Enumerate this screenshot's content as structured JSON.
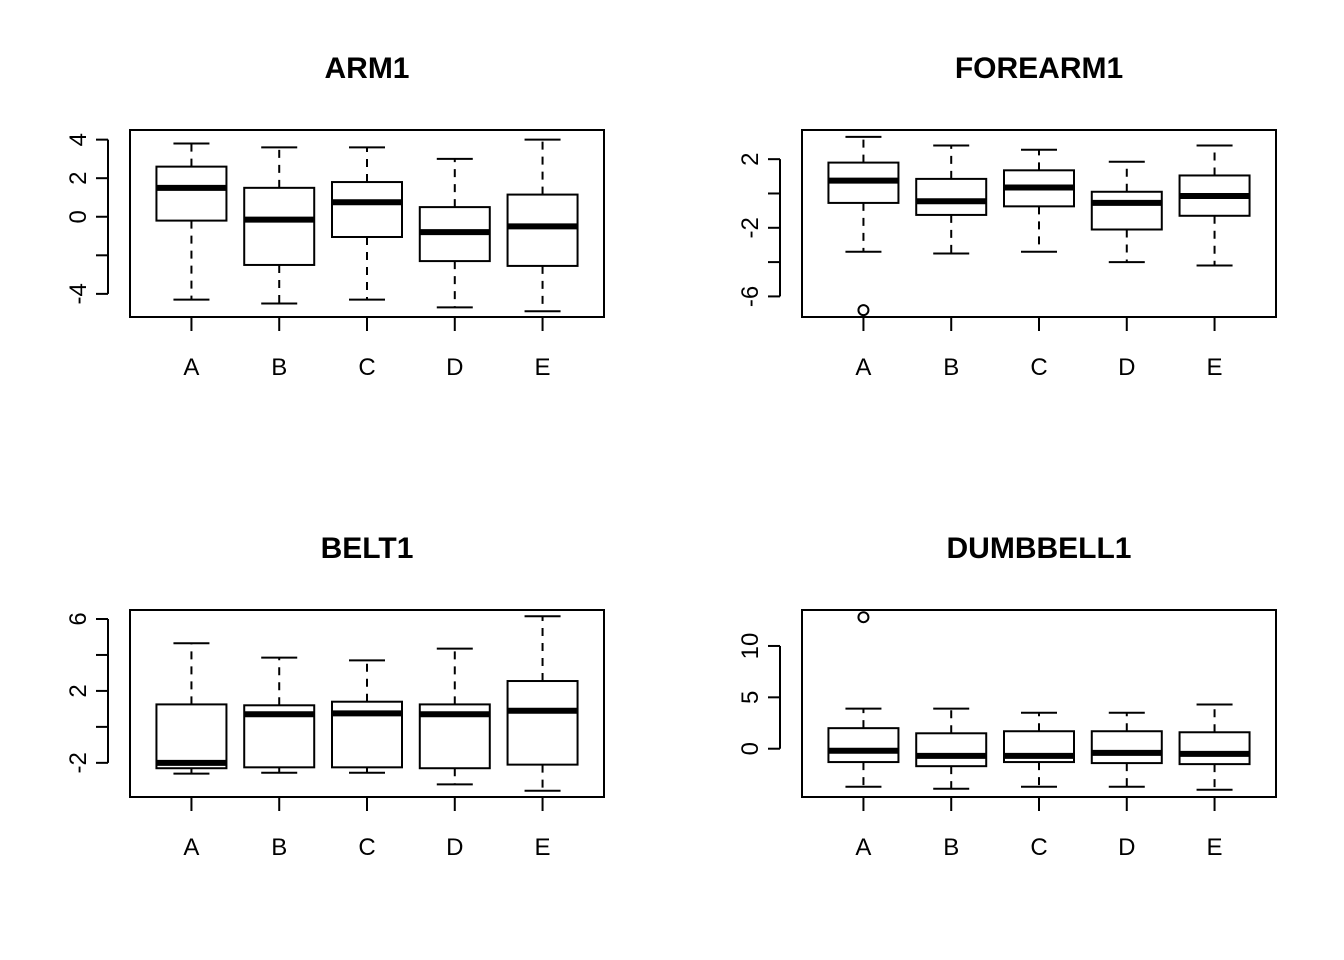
{
  "chart_data": [
    {
      "type": "boxplot",
      "title": "ARM1",
      "categories": [
        "A",
        "B",
        "C",
        "D",
        "E"
      ],
      "ylim": [
        -5.2,
        4.5
      ],
      "yticks": [
        -4,
        -2,
        0,
        2,
        4
      ],
      "ytick_labels": [
        "-4",
        "",
        "0",
        "2",
        "4"
      ],
      "boxes": [
        {
          "category": "A",
          "min": -4.3,
          "q1": -0.2,
          "median": 1.5,
          "q3": 2.6,
          "max": 3.8,
          "outliers": []
        },
        {
          "category": "B",
          "min": -4.5,
          "q1": -2.5,
          "median": -0.15,
          "q3": 1.5,
          "max": 3.6,
          "outliers": []
        },
        {
          "category": "C",
          "min": -4.3,
          "q1": -1.05,
          "median": 0.75,
          "q3": 1.8,
          "max": 3.6,
          "outliers": []
        },
        {
          "category": "D",
          "min": -4.7,
          "q1": -2.3,
          "median": -0.8,
          "q3": 0.5,
          "max": 3.0,
          "outliers": []
        },
        {
          "category": "E",
          "min": -4.9,
          "q1": -2.55,
          "median": -0.5,
          "q3": 1.15,
          "max": 4.0,
          "outliers": []
        }
      ]
    },
    {
      "type": "boxplot",
      "title": "FOREARM1",
      "categories": [
        "A",
        "B",
        "C",
        "D",
        "E"
      ],
      "ylim": [
        -7.2,
        3.7
      ],
      "yticks": [
        -6,
        -4,
        -2,
        0,
        2
      ],
      "ytick_labels": [
        "-6",
        "",
        "-2",
        "",
        "2"
      ],
      "boxes": [
        {
          "category": "A",
          "min": -3.4,
          "q1": -0.55,
          "median": 0.75,
          "q3": 1.8,
          "max": 3.3,
          "outliers": [
            -6.8
          ]
        },
        {
          "category": "B",
          "min": -3.5,
          "q1": -1.25,
          "median": -0.45,
          "q3": 0.85,
          "max": 2.8,
          "outliers": []
        },
        {
          "category": "C",
          "min": -3.4,
          "q1": -0.75,
          "median": 0.35,
          "q3": 1.35,
          "max": 2.55,
          "outliers": []
        },
        {
          "category": "D",
          "min": -4.0,
          "q1": -2.1,
          "median": -0.55,
          "q3": 0.1,
          "max": 1.85,
          "outliers": []
        },
        {
          "category": "E",
          "min": -4.2,
          "q1": -1.3,
          "median": -0.15,
          "q3": 1.05,
          "max": 2.8,
          "outliers": []
        }
      ]
    },
    {
      "type": "boxplot",
      "title": "BELT1",
      "categories": [
        "A",
        "B",
        "C",
        "D",
        "E"
      ],
      "ylim": [
        -3.9,
        6.5
      ],
      "yticks": [
        -2,
        0,
        2,
        4,
        6
      ],
      "ytick_labels": [
        "-2",
        "",
        "2",
        "",
        "6"
      ],
      "boxes": [
        {
          "category": "A",
          "min": -2.6,
          "q1": -2.3,
          "median": -2.0,
          "q3": 1.25,
          "max": 4.65,
          "outliers": []
        },
        {
          "category": "B",
          "min": -2.55,
          "q1": -2.25,
          "median": 0.7,
          "q3": 1.2,
          "max": 3.85,
          "outliers": []
        },
        {
          "category": "C",
          "min": -2.55,
          "q1": -2.25,
          "median": 0.75,
          "q3": 1.4,
          "max": 3.7,
          "outliers": []
        },
        {
          "category": "D",
          "min": -3.2,
          "q1": -2.3,
          "median": 0.7,
          "q3": 1.25,
          "max": 4.35,
          "outliers": []
        },
        {
          "category": "E",
          "min": -3.55,
          "q1": -2.1,
          "median": 0.9,
          "q3": 2.55,
          "max": 6.15,
          "outliers": []
        }
      ]
    },
    {
      "type": "boxplot",
      "title": "DUMBBELL1",
      "categories": [
        "A",
        "B",
        "C",
        "D",
        "E"
      ],
      "ylim": [
        -4.7,
        13.5
      ],
      "yticks": [
        0,
        5,
        10
      ],
      "ytick_labels": [
        "0",
        "5",
        "10"
      ],
      "boxes": [
        {
          "category": "A",
          "min": -3.7,
          "q1": -1.3,
          "median": -0.2,
          "q3": 2.0,
          "max": 3.9,
          "outliers": [
            12.8
          ]
        },
        {
          "category": "B",
          "min": -3.9,
          "q1": -1.7,
          "median": -0.7,
          "q3": 1.5,
          "max": 3.9,
          "outliers": []
        },
        {
          "category": "C",
          "min": -3.7,
          "q1": -1.3,
          "median": -0.7,
          "q3": 1.7,
          "max": 3.5,
          "outliers": []
        },
        {
          "category": "D",
          "min": -3.7,
          "q1": -1.4,
          "median": -0.4,
          "q3": 1.7,
          "max": 3.5,
          "outliers": []
        },
        {
          "category": "E",
          "min": -4.0,
          "q1": -1.5,
          "median": -0.5,
          "q3": 1.6,
          "max": 4.3,
          "outliers": []
        }
      ]
    }
  ]
}
